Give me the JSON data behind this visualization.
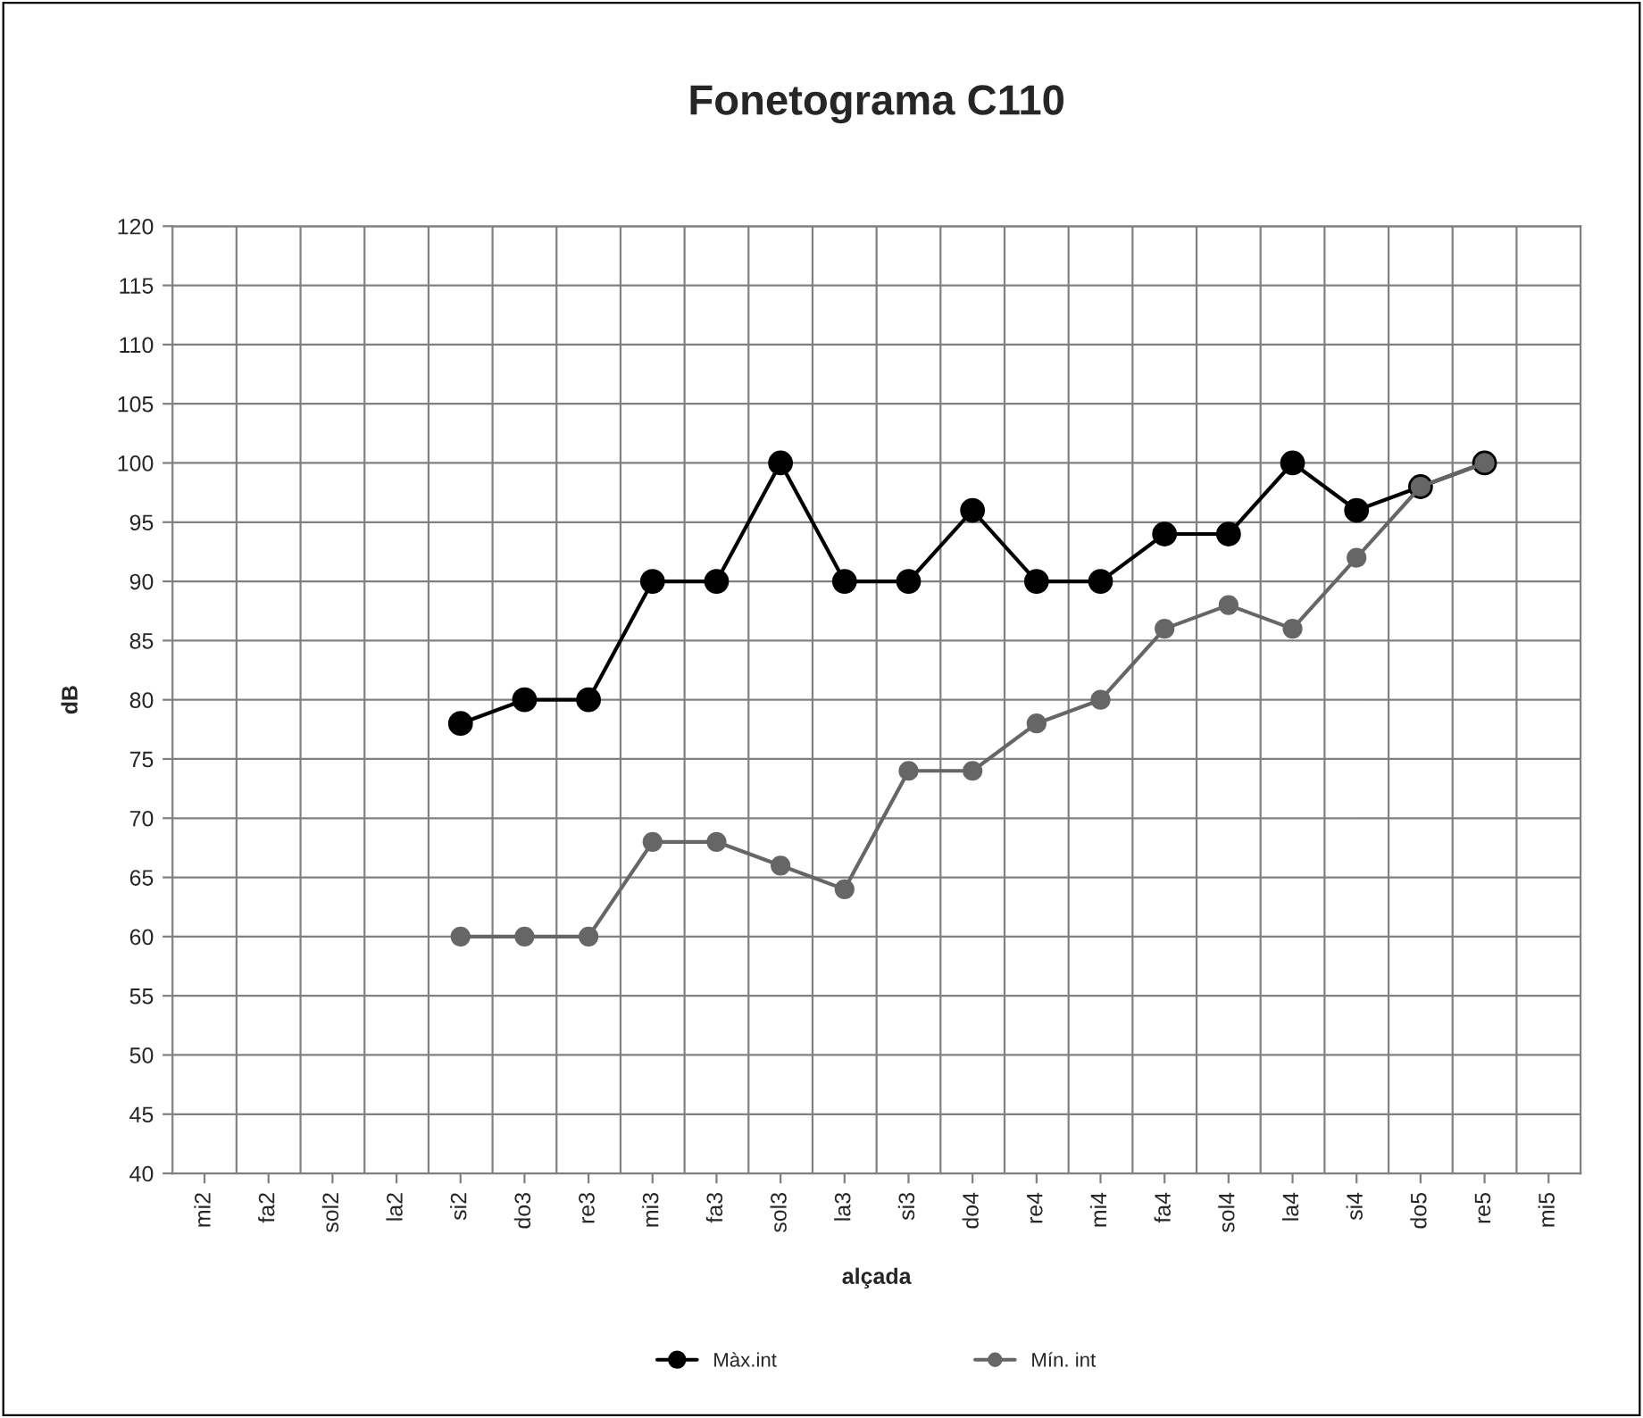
{
  "chart_data": {
    "type": "line",
    "title": "Fonetograma C110",
    "xlabel": "alçada",
    "ylabel": "dB",
    "categories": [
      "mi2",
      "fa2",
      "sol2",
      "la2",
      "si2",
      "do3",
      "re3",
      "mi3",
      "fa3",
      "sol3",
      "la3",
      "si3",
      "do4",
      "re4",
      "mi4",
      "fa4",
      "sol4",
      "la4",
      "si4",
      "do5",
      "re5",
      "mi5"
    ],
    "series": [
      {
        "name": "Màx.int",
        "color": "#000000",
        "values": [
          null,
          null,
          null,
          null,
          78,
          80,
          80,
          90,
          90,
          100,
          90,
          90,
          96,
          90,
          90,
          94,
          94,
          100,
          96,
          98,
          100,
          null
        ]
      },
      {
        "name": "Mín. int",
        "color": "#666666",
        "values": [
          null,
          null,
          null,
          null,
          60,
          60,
          60,
          68,
          68,
          66,
          64,
          74,
          74,
          78,
          80,
          86,
          88,
          86,
          92,
          98,
          100,
          null
        ]
      }
    ],
    "ylim": [
      40,
      120
    ],
    "yticks": [
      40,
      45,
      50,
      55,
      60,
      65,
      70,
      75,
      80,
      85,
      90,
      95,
      100,
      105,
      110,
      115,
      120
    ],
    "grid": true,
    "legend": "bottom",
    "marker": "circle",
    "line_style": "solid"
  }
}
